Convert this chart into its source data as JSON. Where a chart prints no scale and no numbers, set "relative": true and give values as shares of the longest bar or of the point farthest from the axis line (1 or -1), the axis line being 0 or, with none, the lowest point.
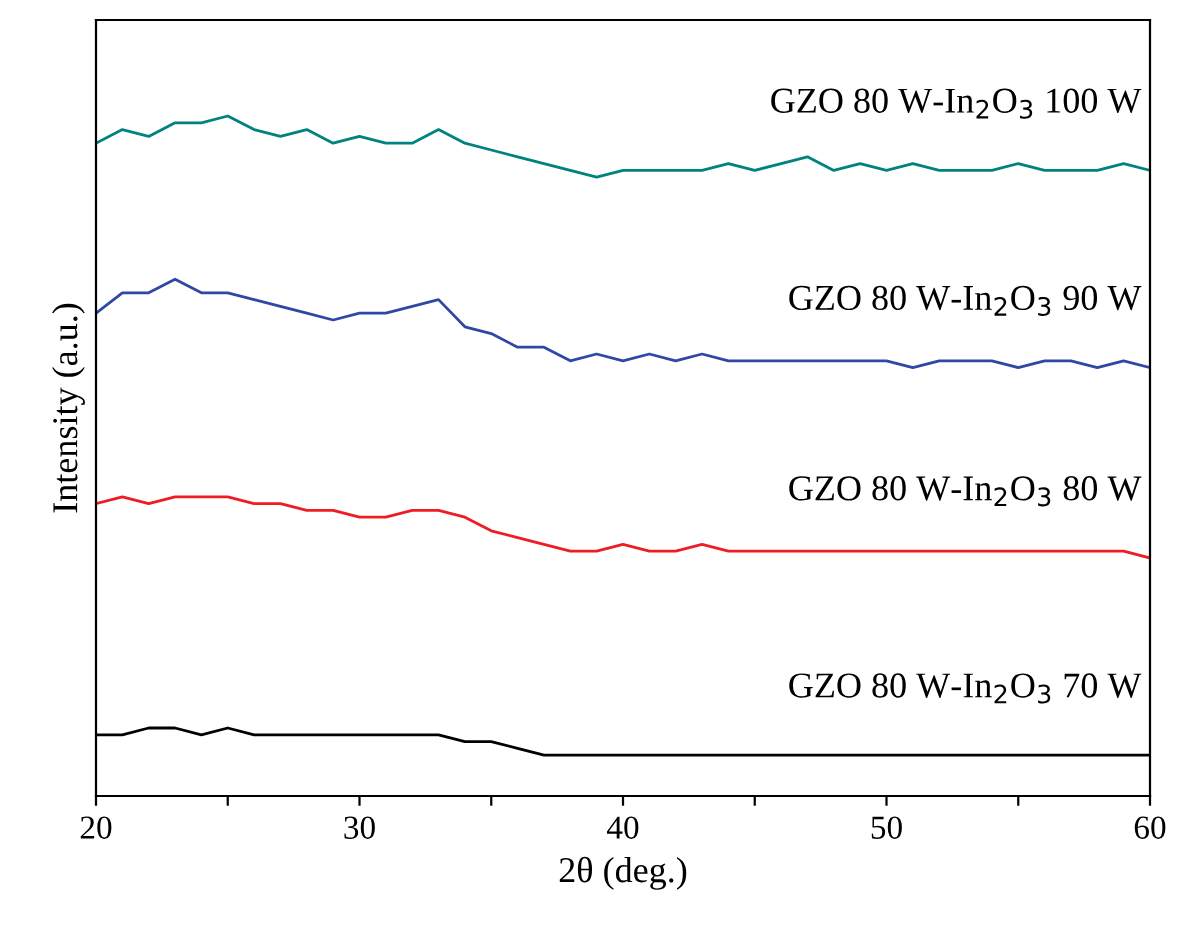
{
  "chart_data": {
    "type": "line",
    "relative": true,
    "xlabel": "2θ (deg.)",
    "ylabel": "Intensity (a.u.)",
    "xlim": [
      20,
      60
    ],
    "xticks": [
      20,
      {
        "value": 25,
        "label": null
      },
      30,
      {
        "value": 35,
        "label": null
      },
      40,
      {
        "value": 45,
        "label": null
      },
      50,
      {
        "value": 55,
        "label": null
      },
      60
    ],
    "x": [
      20,
      21,
      22,
      23,
      24,
      25,
      26,
      27,
      28,
      29,
      30,
      31,
      32,
      33,
      34,
      35,
      36,
      37,
      38,
      39,
      40,
      41,
      42,
      43,
      44,
      45,
      46,
      47,
      48,
      49,
      50,
      51,
      52,
      53,
      54,
      55,
      56,
      57,
      58,
      59,
      60
    ],
    "grid": false,
    "marker": "none",
    "line_style": "solid",
    "series": [
      {
        "name": "GZO 80 W-In$_{2}$O$_{3}$ 100 W",
        "color": "#00827f",
        "values": [
          0.96,
          0.98,
          0.97,
          0.99,
          0.99,
          1.0,
          0.98,
          0.97,
          0.98,
          0.96,
          0.97,
          0.96,
          0.96,
          0.98,
          0.96,
          0.95,
          0.94,
          0.93,
          0.92,
          0.91,
          0.92,
          0.92,
          0.92,
          0.92,
          0.93,
          0.92,
          0.93,
          0.94,
          0.92,
          0.93,
          0.92,
          0.93,
          0.92,
          0.92,
          0.92,
          0.93,
          0.92,
          0.92,
          0.92,
          0.93,
          0.92
        ]
      },
      {
        "name": "GZO 80 W-In$_{2}$O$_{3}$ 90 W",
        "color": "#2f48a6",
        "values": [
          0.71,
          0.74,
          0.74,
          0.76,
          0.74,
          0.74,
          0.73,
          0.72,
          0.71,
          0.7,
          0.71,
          0.71,
          0.72,
          0.73,
          0.69,
          0.68,
          0.66,
          0.66,
          0.64,
          0.65,
          0.64,
          0.65,
          0.64,
          0.65,
          0.64,
          0.64,
          0.64,
          0.64,
          0.64,
          0.64,
          0.64,
          0.63,
          0.64,
          0.64,
          0.64,
          0.63,
          0.64,
          0.64,
          0.63,
          0.64,
          0.63
        ]
      },
      {
        "name": "GZO 80 W-In$_{2}$O$_{3}$ 80 W",
        "color": "#ee1c25",
        "values": [
          0.43,
          0.44,
          0.43,
          0.44,
          0.44,
          0.44,
          0.43,
          0.43,
          0.42,
          0.42,
          0.41,
          0.41,
          0.42,
          0.42,
          0.41,
          0.39,
          0.38,
          0.37,
          0.36,
          0.36,
          0.37,
          0.36,
          0.36,
          0.37,
          0.36,
          0.36,
          0.36,
          0.36,
          0.36,
          0.36,
          0.36,
          0.36,
          0.36,
          0.36,
          0.36,
          0.36,
          0.36,
          0.36,
          0.36,
          0.36,
          0.35
        ]
      },
      {
        "name": "GZO 80 W-In$_{2}$O$_{3}$ 70 W",
        "color": "#000000",
        "values": [
          0.09,
          0.09,
          0.1,
          0.1,
          0.09,
          0.1,
          0.09,
          0.09,
          0.09,
          0.09,
          0.09,
          0.09,
          0.09,
          0.09,
          0.08,
          0.08,
          0.07,
          0.06,
          0.06,
          0.06,
          0.06,
          0.06,
          0.06,
          0.06,
          0.06,
          0.06,
          0.06,
          0.06,
          0.06,
          0.06,
          0.06,
          0.06,
          0.06,
          0.06,
          0.06,
          0.06,
          0.06,
          0.06,
          0.06,
          0.06,
          0.06
        ]
      }
    ]
  }
}
